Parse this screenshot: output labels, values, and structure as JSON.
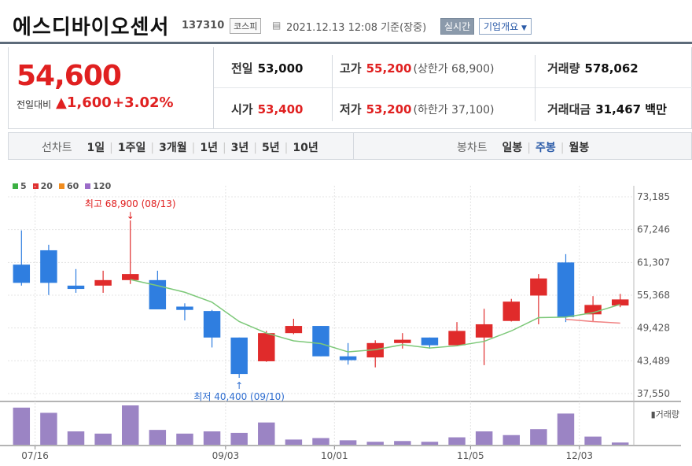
{
  "header": {
    "title": "에스디바이오센서",
    "code": "137310",
    "market": "코스피",
    "date": "2021.12.13 12:08 기준(장중)",
    "realtime": "실시간",
    "corp_info": "기업개요"
  },
  "price": {
    "current": "54,600",
    "change_label": "전일대비",
    "change": "▲1,600",
    "change_pct": "+3.02%",
    "prev_close_label": "전일",
    "prev_close": "53,000",
    "high_label": "고가",
    "high": "55,200",
    "upper_limit": "(상한가 68,900)",
    "volume_label": "거래량",
    "volume": "578,062",
    "open_label": "시가",
    "open": "53,400",
    "low_label": "저가",
    "low": "53,200",
    "lower_limit": "(하한가 37,100)",
    "amount_label": "거래대금",
    "amount": "31,467 백만"
  },
  "periods": {
    "line_label": "선차트",
    "line_items": [
      "1일",
      "1주일",
      "3개월",
      "1년",
      "3년",
      "5년",
      "10년"
    ],
    "candle_label": "봉차트",
    "candle_items": [
      "일봉",
      "주봉",
      "월봉"
    ],
    "candle_selected": "주봉"
  },
  "legend": [
    {
      "label": "5",
      "color": "#3cb043"
    },
    {
      "label": "20",
      "color": "#e03030"
    },
    {
      "label": "60",
      "color": "#f08c1e"
    },
    {
      "label": "120",
      "color": "#9b6cc8"
    }
  ],
  "chart_data": {
    "type": "candlestick",
    "ylim": [
      37550,
      73185
    ],
    "y_ticks": [
      "73,185",
      "67,246",
      "61,307",
      "55,368",
      "49,428",
      "43,489",
      "37,550"
    ],
    "x_tick_labels": [
      {
        "index": 1,
        "label": "07/16"
      },
      {
        "index": 8,
        "label": "09/03"
      },
      {
        "index": 12,
        "label": "10/01"
      },
      {
        "index": 17,
        "label": "11/05"
      },
      {
        "index": 21,
        "label": "12/03"
      }
    ],
    "candles": [
      {
        "o": 60900,
        "h": 67100,
        "l": 57100,
        "c": 57600
      },
      {
        "o": 63500,
        "h": 64500,
        "l": 55400,
        "c": 57600
      },
      {
        "o": 57100,
        "h": 60100,
        "l": 55800,
        "c": 56500
      },
      {
        "o": 57100,
        "h": 59800,
        "l": 55800,
        "c": 58100
      },
      {
        "o": 58100,
        "h": 68900,
        "l": 57400,
        "c": 59200
      },
      {
        "o": 58100,
        "h": 59800,
        "l": 52800,
        "c": 52800
      },
      {
        "o": 53300,
        "h": 53900,
        "l": 50800,
        "c": 52700
      },
      {
        "o": 52500,
        "h": 52700,
        "l": 45900,
        "c": 47700
      },
      {
        "o": 47700,
        "h": 47700,
        "l": 40400,
        "c": 41100
      },
      {
        "o": 43400,
        "h": 48900,
        "l": 43300,
        "c": 48500
      },
      {
        "o": 48500,
        "h": 51100,
        "l": 48300,
        "c": 49800
      },
      {
        "o": 49800,
        "h": 49800,
        "l": 44300,
        "c": 44300
      },
      {
        "o": 44300,
        "h": 46700,
        "l": 42800,
        "c": 43600
      },
      {
        "o": 44100,
        "h": 47200,
        "l": 42300,
        "c": 46700
      },
      {
        "o": 46700,
        "h": 48500,
        "l": 45700,
        "c": 47300
      },
      {
        "o": 47700,
        "h": 47700,
        "l": 45700,
        "c": 46300
      },
      {
        "o": 46300,
        "h": 50500,
        "l": 46300,
        "c": 48900
      },
      {
        "o": 47700,
        "h": 52900,
        "l": 42700,
        "c": 50100
      },
      {
        "o": 50700,
        "h": 54700,
        "l": 50600,
        "c": 54200
      },
      {
        "o": 55300,
        "h": 59200,
        "l": 50100,
        "c": 58400
      },
      {
        "o": 61300,
        "h": 62800,
        "l": 50500,
        "c": 51400
      },
      {
        "o": 51900,
        "h": 55200,
        "l": 50700,
        "c": 53600
      },
      {
        "o": 53500,
        "h": 55600,
        "l": 53200,
        "c": 54600
      }
    ],
    "ma5": [
      null,
      null,
      null,
      null,
      58200,
      57100,
      55900,
      54100,
      50600,
      48500,
      47100,
      46600,
      45100,
      45500,
      46400,
      45800,
      46200,
      47000,
      48900,
      51300,
      51400,
      52200,
      53700
    ],
    "ma20": [
      null,
      null,
      null,
      null,
      null,
      null,
      null,
      null,
      null,
      null,
      null,
      null,
      null,
      null,
      null,
      null,
      null,
      null,
      null,
      null,
      51000,
      50600,
      50300
    ],
    "volume": [
      5,
      4.3,
      1.8,
      1.5,
      5.3,
      2,
      1.5,
      1.8,
      1.6,
      3,
      0.7,
      0.9,
      0.6,
      0.4,
      0.5,
      0.4,
      1,
      1.8,
      1.3,
      2.1,
      4.2,
      1.1,
      0.3
    ],
    "annotations": {
      "max_label": "최고 68,900 (08/13)",
      "min_label": "최저 40,400 (09/10)"
    },
    "volume_label": "거래량"
  }
}
